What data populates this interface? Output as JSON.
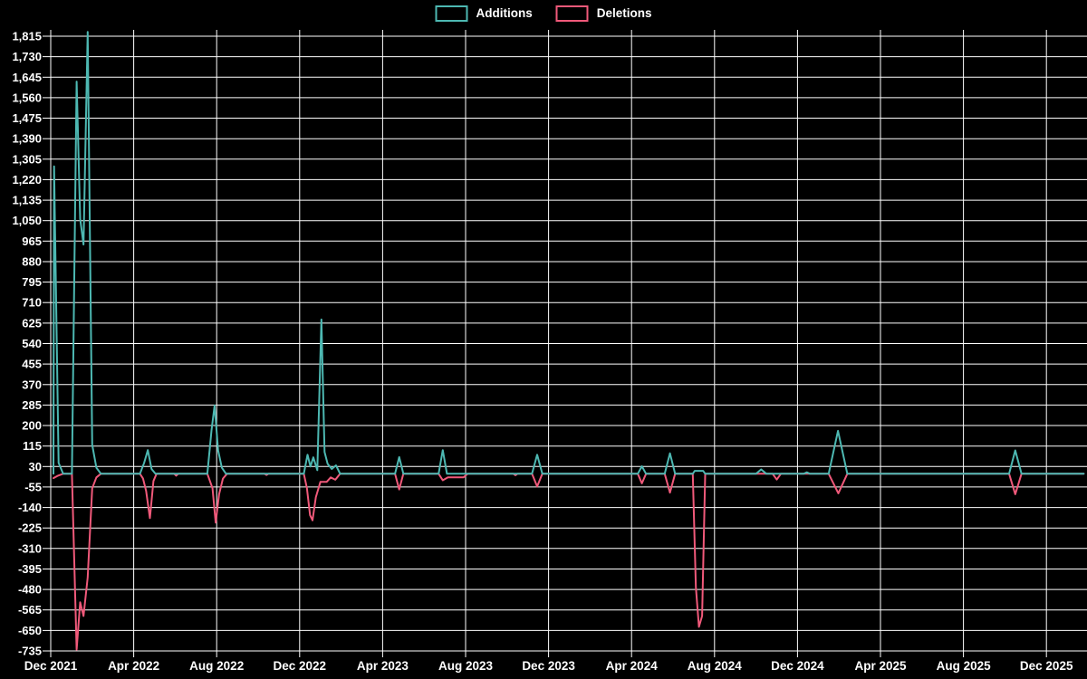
{
  "chart_data": {
    "type": "line",
    "title": "",
    "background": "#000000",
    "grid": true,
    "grid_color": "#ffffff",
    "text_color": "#ffffff",
    "legend_position": "top-center",
    "legend": [
      {
        "label": "Additions",
        "color": "#4db8b2"
      },
      {
        "label": "Deletions",
        "color": "#f0597a"
      }
    ],
    "x_unit": "months since Dec 2021 (weekly data)",
    "x_tick_labels": [
      "Dec 2021",
      "Apr 2022",
      "Aug 2022",
      "Dec 2022",
      "Apr 2023",
      "Aug 2023",
      "Dec 2023",
      "Apr 2024",
      "Aug 2024",
      "Dec 2024",
      "Apr 2025",
      "Aug 2025",
      "Dec 2025"
    ],
    "x_tick_months": [
      0,
      4,
      8,
      12,
      16,
      20,
      24,
      28,
      32,
      36,
      40,
      44,
      48
    ],
    "y_tick_labels": [
      "1,815",
      "1,730",
      "1,645",
      "1,560",
      "1,475",
      "1,390",
      "1,305",
      "1,220",
      "1,135",
      "1,050",
      "965",
      "880",
      "795",
      "710",
      "625",
      "540",
      "455",
      "370",
      "285",
      "200",
      "115",
      "30",
      "-55",
      "-140",
      "-225",
      "-310",
      "-395",
      "-480",
      "-565",
      "-650",
      "-735"
    ],
    "y_ticks": [
      1815,
      1730,
      1645,
      1560,
      1475,
      1390,
      1305,
      1220,
      1135,
      1050,
      965,
      880,
      795,
      710,
      625,
      540,
      455,
      370,
      285,
      200,
      115,
      30,
      -55,
      -140,
      -225,
      -310,
      -395,
      -480,
      -565,
      -650,
      -735
    ],
    "ylim": [
      -735,
      1833
    ],
    "xlim_months": [
      0,
      49.8
    ],
    "series": [
      {
        "name": "Additions",
        "color": "#4db8b2",
        "points": [
          [
            0.13,
            0
          ],
          [
            0.16,
            1275
          ],
          [
            0.38,
            45
          ],
          [
            0.6,
            0
          ],
          [
            1.02,
            0
          ],
          [
            1.25,
            1627
          ],
          [
            1.42,
            1057
          ],
          [
            1.58,
            951
          ],
          [
            1.78,
            1833
          ],
          [
            2.0,
            120
          ],
          [
            2.2,
            25
          ],
          [
            2.42,
            0
          ],
          [
            4.3,
            0
          ],
          [
            4.5,
            45
          ],
          [
            4.68,
            98
          ],
          [
            4.86,
            20
          ],
          [
            5.05,
            0
          ],
          [
            7.55,
            0
          ],
          [
            7.75,
            180
          ],
          [
            7.9,
            283
          ],
          [
            8.07,
            97
          ],
          [
            8.25,
            25
          ],
          [
            8.45,
            0
          ],
          [
            12.2,
            0
          ],
          [
            12.38,
            79
          ],
          [
            12.52,
            30
          ],
          [
            12.66,
            68
          ],
          [
            12.85,
            15
          ],
          [
            13.05,
            640
          ],
          [
            13.2,
            90
          ],
          [
            13.35,
            41
          ],
          [
            13.55,
            20
          ],
          [
            13.75,
            35
          ],
          [
            13.95,
            0
          ],
          [
            16.6,
            0
          ],
          [
            16.8,
            69
          ],
          [
            17.0,
            0
          ],
          [
            18.7,
            0
          ],
          [
            18.9,
            98
          ],
          [
            19.1,
            0
          ],
          [
            23.2,
            0
          ],
          [
            23.45,
            79
          ],
          [
            23.7,
            0
          ],
          [
            28.3,
            0
          ],
          [
            28.5,
            31
          ],
          [
            28.7,
            0
          ],
          [
            29.6,
            0
          ],
          [
            29.85,
            85
          ],
          [
            30.1,
            0
          ],
          [
            30.95,
            0
          ],
          [
            31.05,
            12
          ],
          [
            31.45,
            12
          ],
          [
            31.55,
            0
          ],
          [
            34.0,
            0
          ],
          [
            34.25,
            18
          ],
          [
            34.5,
            0
          ],
          [
            36.3,
            0
          ],
          [
            36.45,
            6
          ],
          [
            36.6,
            0
          ],
          [
            37.5,
            0
          ],
          [
            37.95,
            178
          ],
          [
            38.4,
            0
          ],
          [
            46.2,
            0
          ],
          [
            46.5,
            97
          ],
          [
            46.8,
            0
          ],
          [
            49.8,
            0
          ]
        ]
      },
      {
        "name": "Deletions",
        "color": "#f0597a",
        "points": [
          [
            0.13,
            -18
          ],
          [
            0.35,
            -8
          ],
          [
            0.6,
            0
          ],
          [
            1.02,
            0
          ],
          [
            1.25,
            -730
          ],
          [
            1.42,
            -533
          ],
          [
            1.58,
            -590
          ],
          [
            1.78,
            -430
          ],
          [
            2.0,
            -60
          ],
          [
            2.2,
            -15
          ],
          [
            2.42,
            0
          ],
          [
            4.3,
            0
          ],
          [
            4.45,
            -20
          ],
          [
            4.6,
            -71
          ],
          [
            4.78,
            -184
          ],
          [
            4.95,
            -30
          ],
          [
            5.1,
            0
          ],
          [
            5.95,
            0
          ],
          [
            6.05,
            -8
          ],
          [
            6.15,
            0
          ],
          [
            7.55,
            0
          ],
          [
            7.8,
            -60
          ],
          [
            7.95,
            -203
          ],
          [
            8.12,
            -84
          ],
          [
            8.3,
            -20
          ],
          [
            8.5,
            0
          ],
          [
            10.3,
            0
          ],
          [
            10.4,
            -5
          ],
          [
            10.5,
            0
          ],
          [
            12.2,
            0
          ],
          [
            12.35,
            -59
          ],
          [
            12.5,
            -172
          ],
          [
            12.62,
            -193
          ],
          [
            12.78,
            -97
          ],
          [
            13.0,
            -34
          ],
          [
            13.3,
            -34
          ],
          [
            13.5,
            -15
          ],
          [
            13.72,
            -25
          ],
          [
            13.95,
            0
          ],
          [
            16.6,
            0
          ],
          [
            16.8,
            -65
          ],
          [
            17.0,
            0
          ],
          [
            18.7,
            0
          ],
          [
            18.9,
            -27
          ],
          [
            19.15,
            -15
          ],
          [
            19.9,
            -15
          ],
          [
            20.1,
            0
          ],
          [
            22.3,
            0
          ],
          [
            22.4,
            -6
          ],
          [
            22.5,
            0
          ],
          [
            23.2,
            0
          ],
          [
            23.45,
            -53
          ],
          [
            23.7,
            0
          ],
          [
            28.3,
            0
          ],
          [
            28.5,
            -40
          ],
          [
            28.7,
            0
          ],
          [
            29.6,
            0
          ],
          [
            29.85,
            -78
          ],
          [
            30.1,
            0
          ],
          [
            30.95,
            0
          ],
          [
            31.1,
            -470
          ],
          [
            31.25,
            -635
          ],
          [
            31.4,
            -590
          ],
          [
            31.55,
            0
          ],
          [
            34.8,
            0
          ],
          [
            35.0,
            -24
          ],
          [
            35.2,
            0
          ],
          [
            37.5,
            0
          ],
          [
            37.97,
            -81
          ],
          [
            38.4,
            0
          ],
          [
            46.2,
            0
          ],
          [
            46.5,
            -85
          ],
          [
            46.8,
            0
          ],
          [
            49.8,
            0
          ]
        ]
      }
    ]
  }
}
